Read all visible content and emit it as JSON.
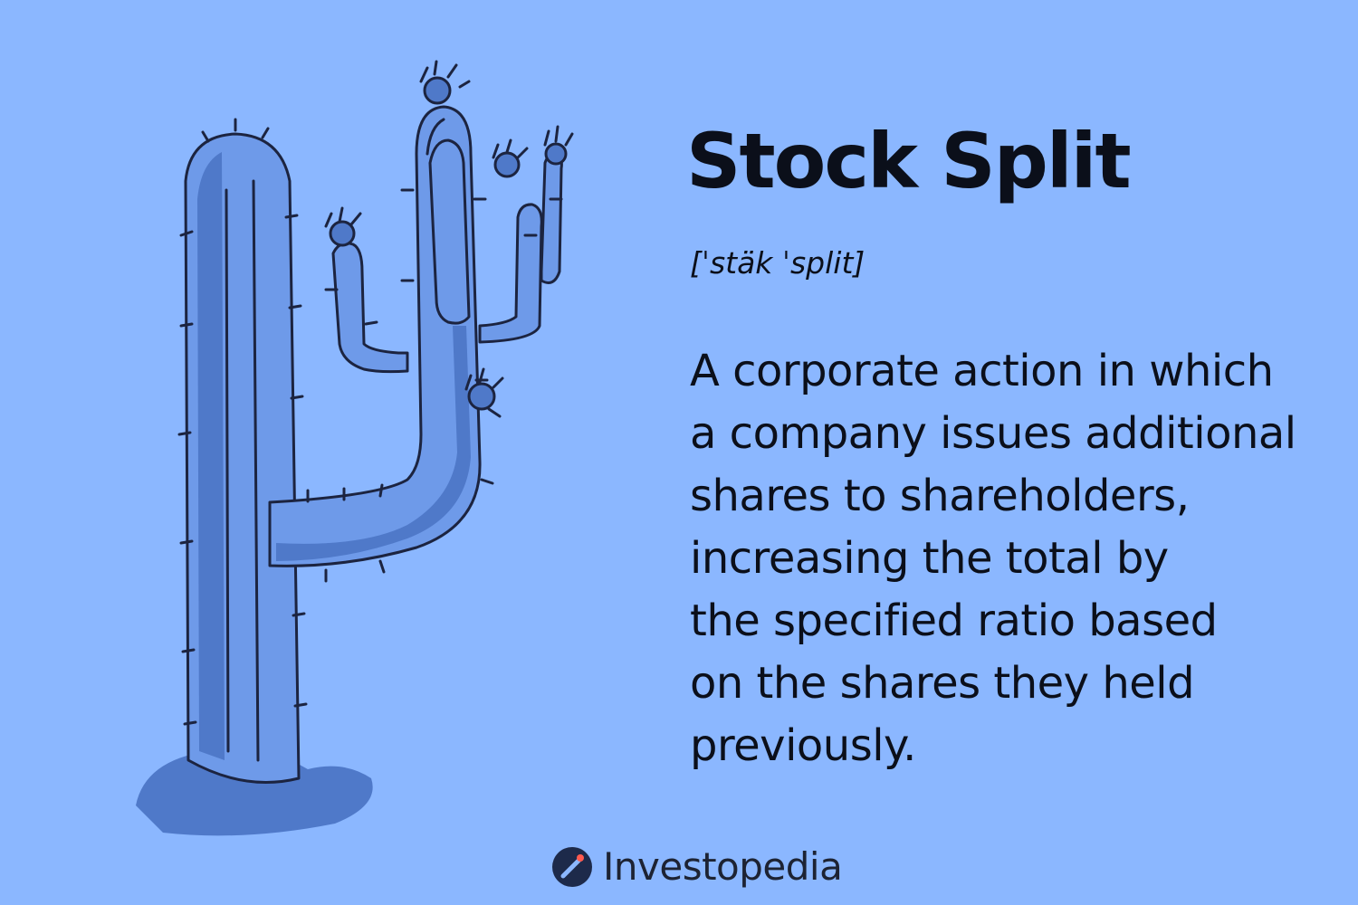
{
  "term": {
    "title": "Stock Split",
    "pronunciation": "[ˈstäk ˈsplit]"
  },
  "definition": {
    "lines": [
      "A corporate action in which",
      "a company issues additional",
      "shares to shareholders,",
      "increasing the total by",
      "the specified ratio based",
      "on the shares they held",
      "previously."
    ]
  },
  "brand": {
    "name": "Investopedia",
    "mark_icon": "investopedia-logo-icon"
  },
  "illustration": {
    "subject": "cactus-icon"
  },
  "colors": {
    "background": "#8bb7ff",
    "text": "#0b0f1a",
    "cactus_light": "#6e9ae9",
    "cactus_shade": "#4f79c9",
    "outline": "#1c2440"
  }
}
